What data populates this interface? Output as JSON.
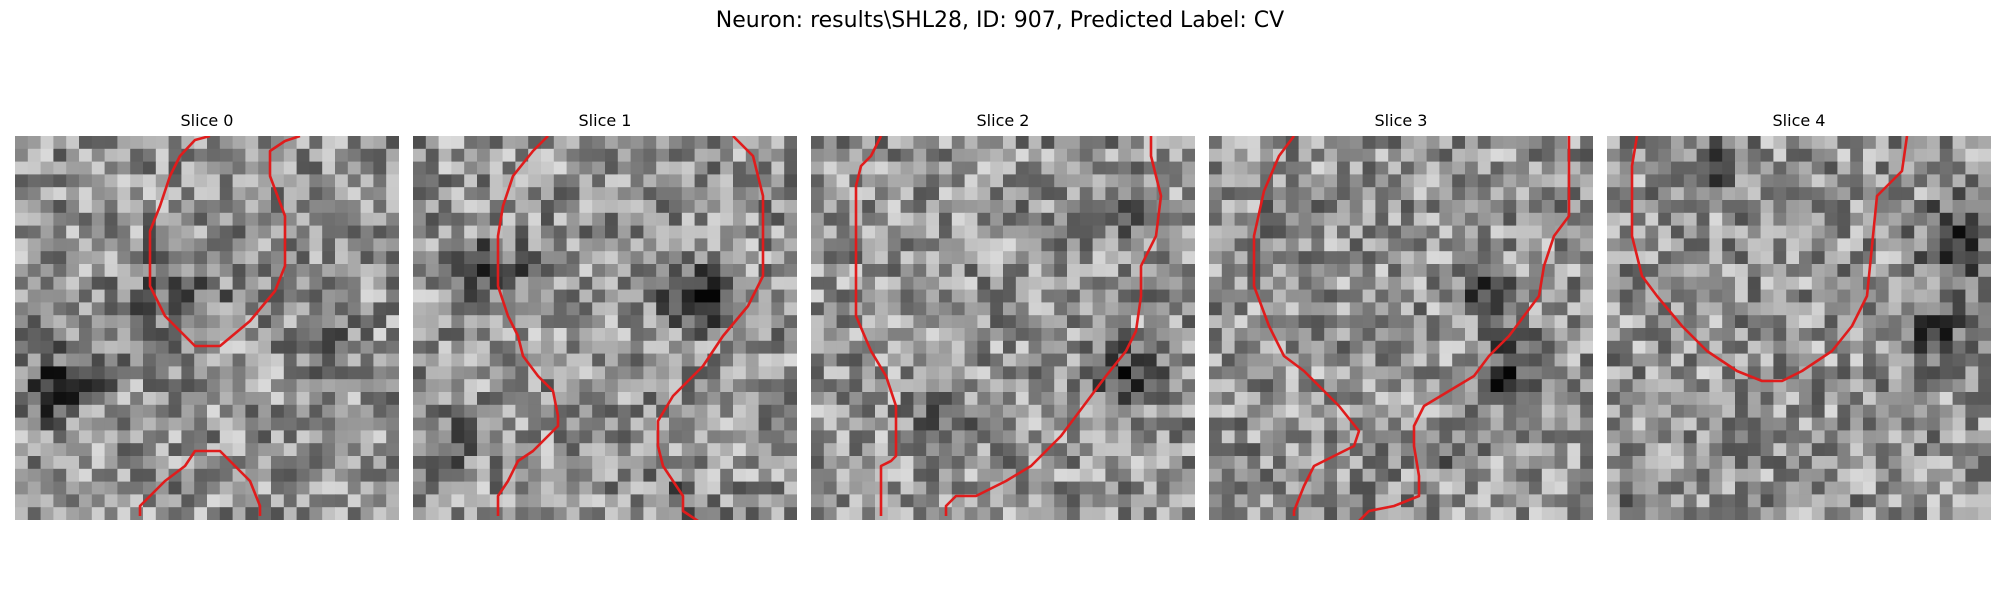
{
  "title": "Neuron: results\\SHL28, ID: 907, Predicted Label: CV",
  "colors": {
    "contour": "#e01c1c"
  },
  "colormap": "gray",
  "slices": [
    {
      "label": "Slice 0"
    },
    {
      "label": "Slice 1"
    },
    {
      "label": "Slice 2"
    },
    {
      "label": "Slice 3"
    },
    {
      "label": "Slice 4"
    }
  ]
}
